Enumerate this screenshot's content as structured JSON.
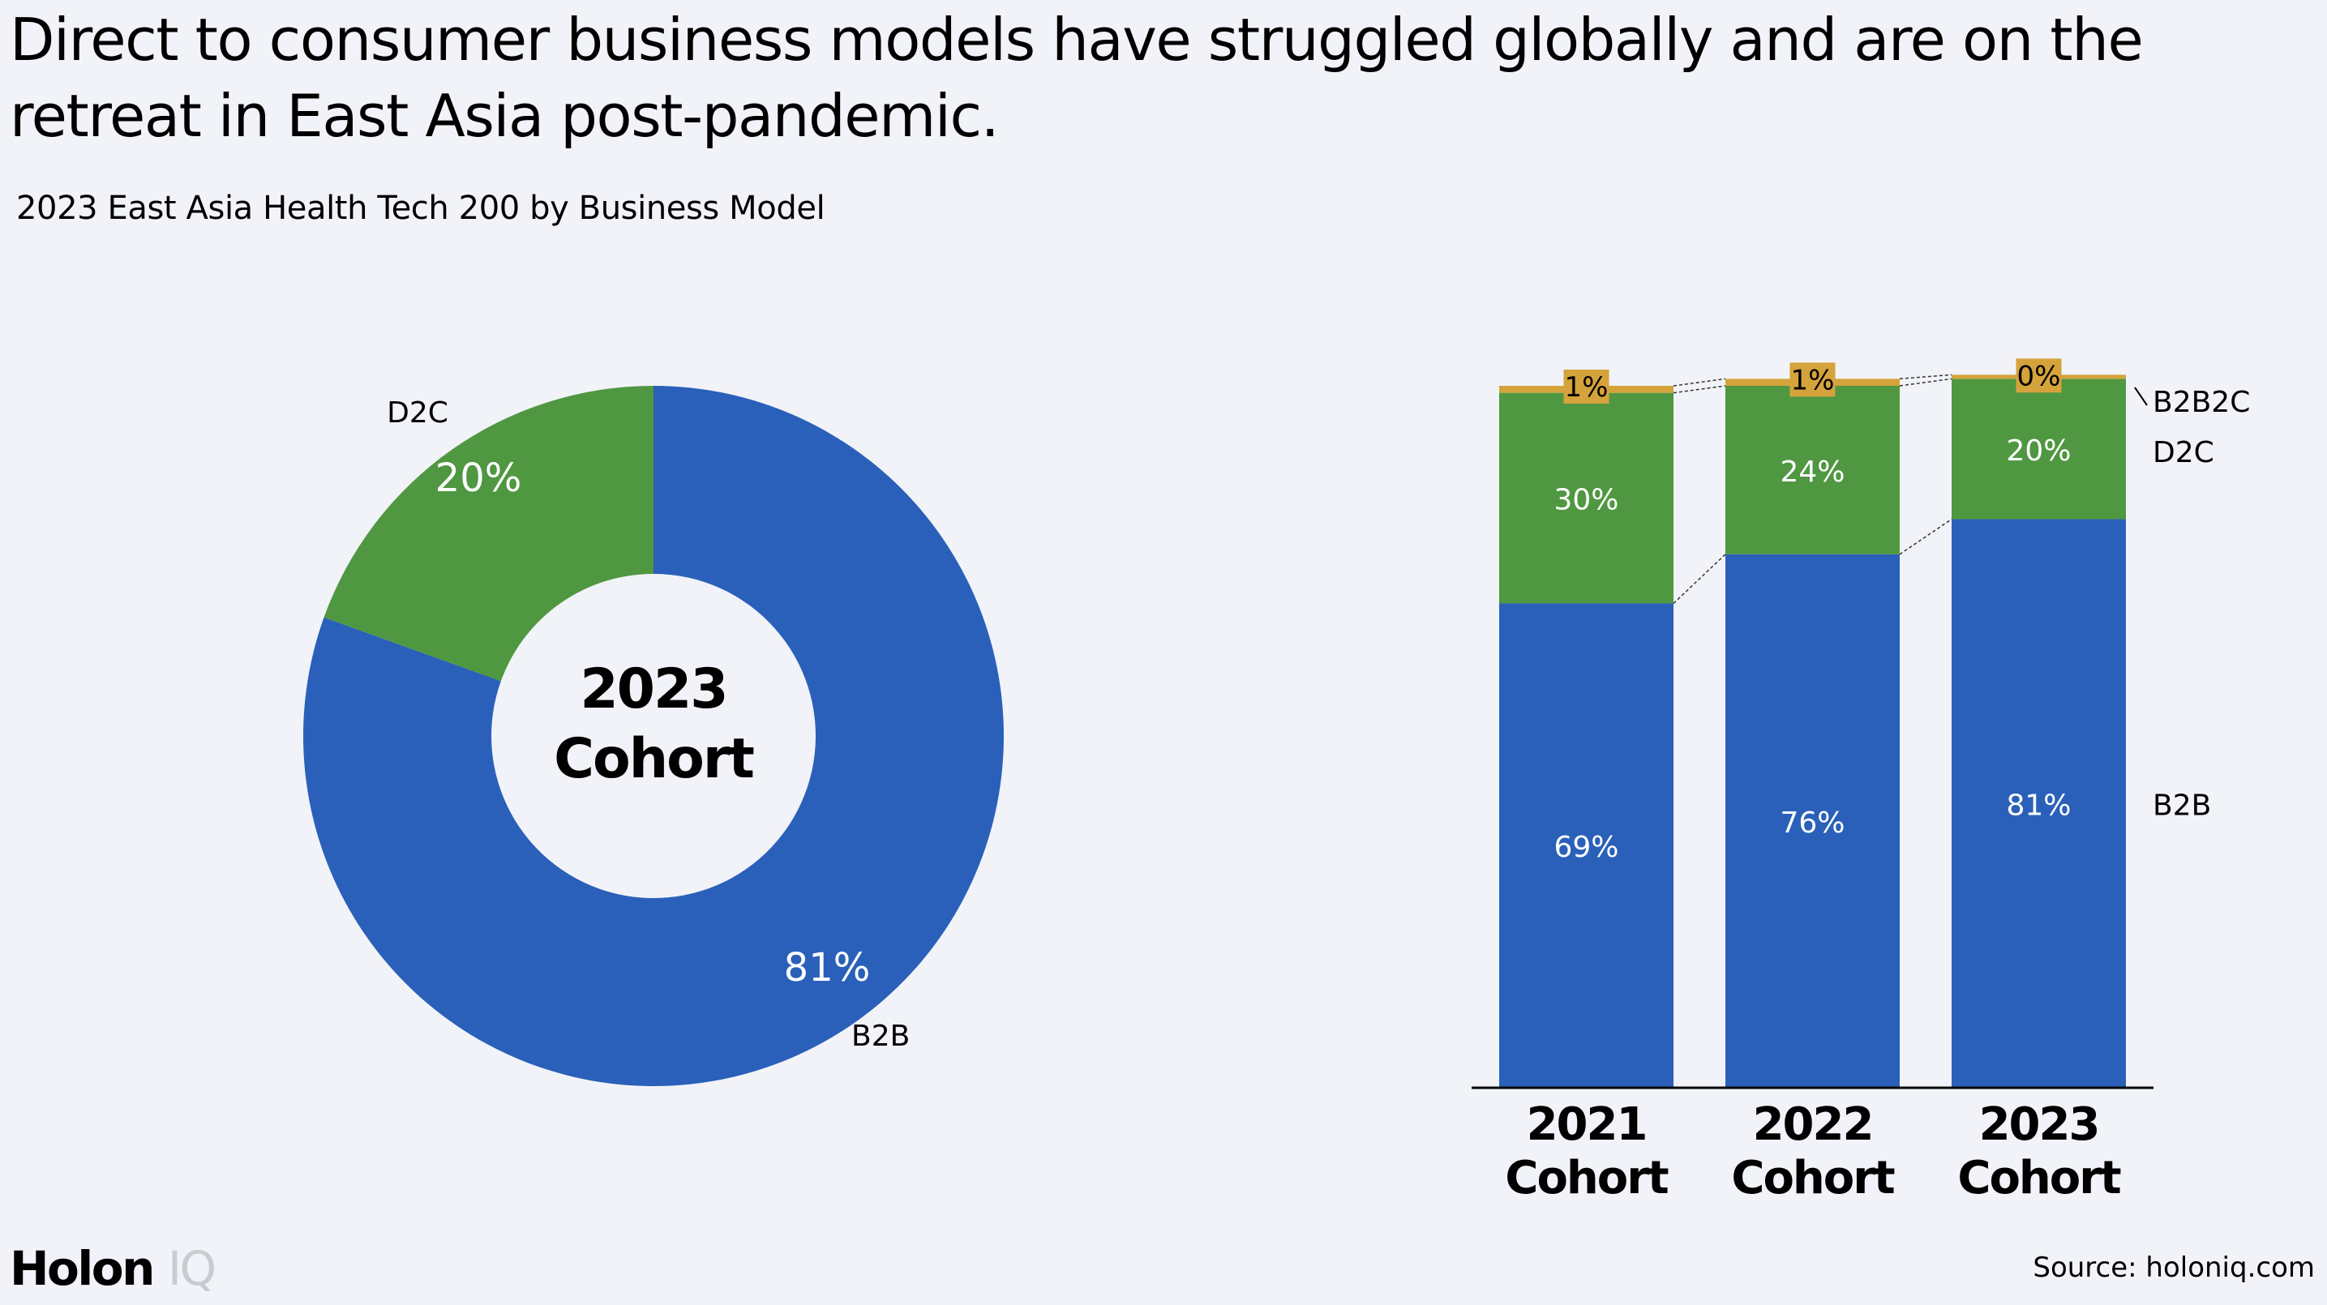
{
  "headline": "Direct to consumer business models have struggled globally and are on the retreat in East Asia post-pandemic.",
  "subtitle": "2023 East Asia Health Tech 200 by Business Model",
  "source": "Source: holoniq.com",
  "logo": {
    "primary": "Holon",
    "secondary": "IQ"
  },
  "colors": {
    "B2B": "#2a60b9",
    "D2C": "#509741",
    "B2B2C": "#d5a33b",
    "background": "#f1f3f8"
  },
  "chart_data": [
    {
      "type": "pie",
      "center_label": [
        "2023",
        "Cohort"
      ],
      "slices": [
        {
          "name": "B2B",
          "value": 80.5,
          "label": "81%"
        },
        {
          "name": "D2C",
          "value": 19.5,
          "label": "20%"
        }
      ]
    },
    {
      "type": "bar",
      "stacked": true,
      "categories": [
        "2021 Cohort",
        "2022 Cohort",
        "2023 Cohort"
      ],
      "category_lines": [
        [
          "2021",
          "Cohort"
        ],
        [
          "2022",
          "Cohort"
        ],
        [
          "2023",
          "Cohort"
        ]
      ],
      "series": [
        {
          "name": "B2B",
          "values": [
            69,
            76,
            81
          ],
          "labels": [
            "69%",
            "76%",
            "81%"
          ]
        },
        {
          "name": "D2C",
          "values": [
            30,
            24,
            20
          ],
          "labels": [
            "30%",
            "24%",
            "20%"
          ]
        },
        {
          "name": "B2B2C",
          "values": [
            1,
            1,
            0
          ],
          "labels": [
            "1%",
            "1%",
            "0%"
          ]
        }
      ],
      "ylim": [
        0,
        100
      ]
    }
  ]
}
